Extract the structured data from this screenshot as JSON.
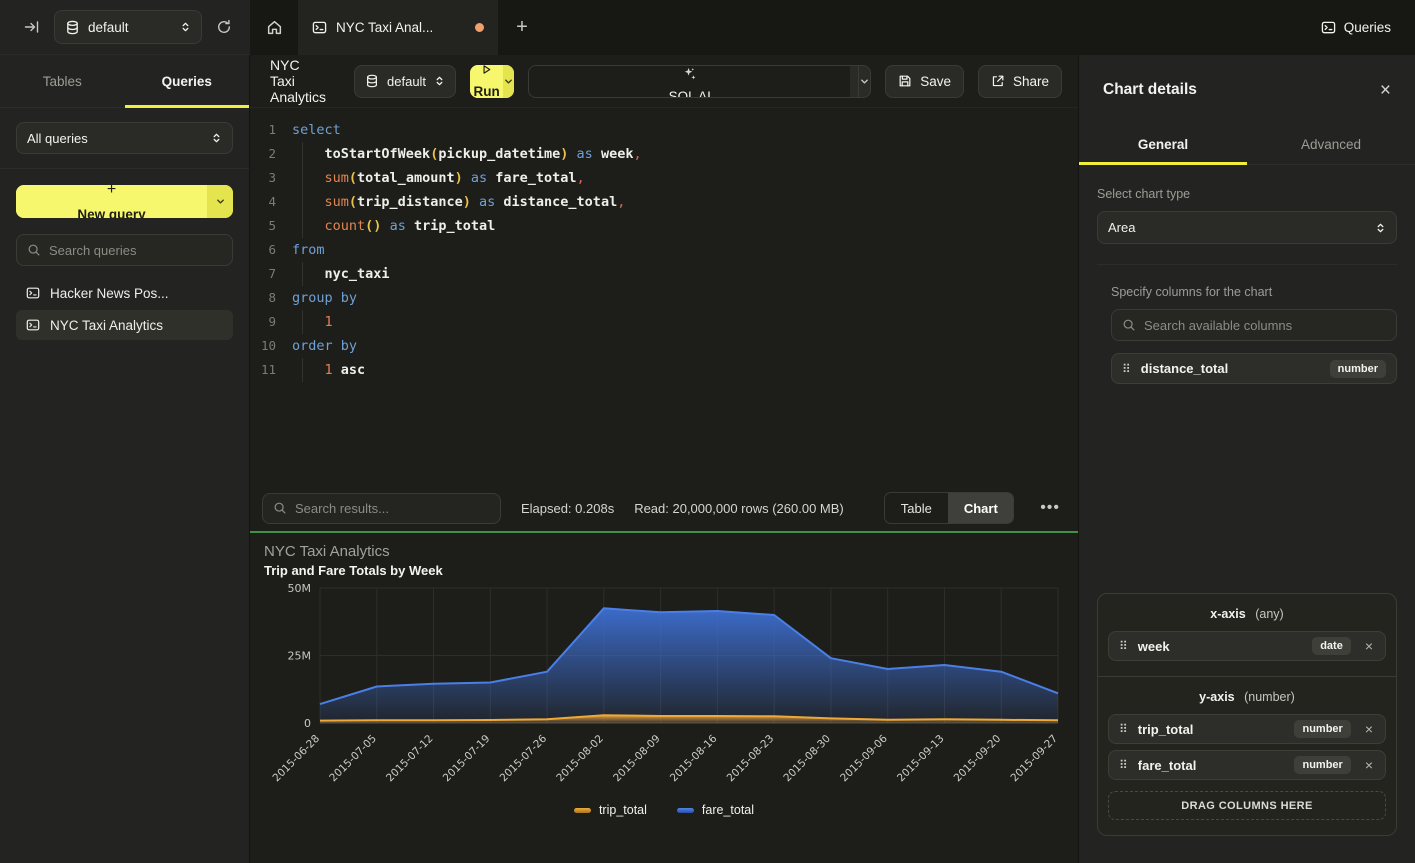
{
  "topbar": {
    "database_selector": {
      "value": "default"
    },
    "tab_label": "NYC Taxi Anal...",
    "new_tab": "+",
    "queries_button": "Queries"
  },
  "sidebar": {
    "tabs": [
      {
        "label": "Tables"
      },
      {
        "label": "Queries"
      }
    ],
    "filter_select": "All queries",
    "new_query_button": "New query",
    "search_placeholder": "Search queries",
    "queries": [
      {
        "label": "Hacker News Pos..."
      },
      {
        "label": "NYC Taxi Analytics"
      }
    ]
  },
  "toolbar": {
    "title": "NYC Taxi Analytics",
    "database_selector": "default",
    "run_label": "Run",
    "sql_ai_label": "SQL AI",
    "save_label": "Save",
    "share_label": "Share"
  },
  "editor": {
    "lines": [
      {
        "num": "1",
        "indent": false,
        "tokens": [
          [
            "select",
            "k"
          ]
        ]
      },
      {
        "num": "2",
        "indent": true,
        "tokens": [
          [
            "    ",
            "w"
          ],
          [
            "toStartOfWeek",
            "i"
          ],
          [
            "(",
            "p"
          ],
          [
            "pickup_datetime",
            "i"
          ],
          [
            ")",
            "p"
          ],
          [
            " ",
            "w"
          ],
          [
            "as",
            "k"
          ],
          [
            " ",
            "w"
          ],
          [
            "week",
            "i"
          ],
          [
            ",",
            "c"
          ]
        ]
      },
      {
        "num": "3",
        "indent": true,
        "tokens": [
          [
            "    ",
            "w"
          ],
          [
            "sum",
            "f"
          ],
          [
            "(",
            "p"
          ],
          [
            "total_amount",
            "i"
          ],
          [
            ")",
            "p"
          ],
          [
            " ",
            "w"
          ],
          [
            "as",
            "k"
          ],
          [
            " ",
            "w"
          ],
          [
            "fare_total",
            "i"
          ],
          [
            ",",
            "c"
          ]
        ]
      },
      {
        "num": "4",
        "indent": true,
        "tokens": [
          [
            "    ",
            "w"
          ],
          [
            "sum",
            "f"
          ],
          [
            "(",
            "p"
          ],
          [
            "trip_distance",
            "i"
          ],
          [
            ")",
            "p"
          ],
          [
            " ",
            "w"
          ],
          [
            "as",
            "k"
          ],
          [
            " ",
            "w"
          ],
          [
            "distance_total",
            "i"
          ],
          [
            ",",
            "c"
          ]
        ]
      },
      {
        "num": "5",
        "indent": true,
        "tokens": [
          [
            "    ",
            "w"
          ],
          [
            "count",
            "f"
          ],
          [
            "(",
            "p"
          ],
          [
            ")",
            "p"
          ],
          [
            " ",
            "w"
          ],
          [
            "as",
            "k"
          ],
          [
            " ",
            "w"
          ],
          [
            "trip_total",
            "i"
          ]
        ]
      },
      {
        "num": "6",
        "indent": false,
        "tokens": [
          [
            "from",
            "k"
          ]
        ]
      },
      {
        "num": "7",
        "indent": true,
        "tokens": [
          [
            "    ",
            "w"
          ],
          [
            "nyc_taxi",
            "i"
          ]
        ]
      },
      {
        "num": "8",
        "indent": false,
        "tokens": [
          [
            "group by",
            "k"
          ]
        ]
      },
      {
        "num": "9",
        "indent": true,
        "tokens": [
          [
            "    ",
            "w"
          ],
          [
            "1",
            "n"
          ]
        ]
      },
      {
        "num": "10",
        "indent": false,
        "tokens": [
          [
            "order by",
            "k"
          ]
        ]
      },
      {
        "num": "11",
        "indent": true,
        "tokens": [
          [
            "    ",
            "w"
          ],
          [
            "1",
            "n"
          ],
          [
            " ",
            "w"
          ],
          [
            "asc",
            "i"
          ]
        ]
      }
    ]
  },
  "results": {
    "search_placeholder": "Search results...",
    "elapsed": "Elapsed: 0.208s",
    "read": "Read: 20,000,000 rows (260.00 MB)",
    "view_table": "Table",
    "view_chart": "Chart",
    "active_view": "Chart"
  },
  "chart_data": {
    "type": "area",
    "title": "NYC Taxi Analytics",
    "subtitle": "Trip and Fare Totals by Week",
    "x": [
      "2015-06-28",
      "2015-07-05",
      "2015-07-12",
      "2015-07-19",
      "2015-07-26",
      "2015-08-02",
      "2015-08-09",
      "2015-08-16",
      "2015-08-23",
      "2015-08-30",
      "2015-09-06",
      "2015-09-13",
      "2015-09-20",
      "2015-09-27"
    ],
    "series": [
      {
        "name": "trip_total",
        "color": "#e9a13b",
        "line_color": "#f0a836",
        "values": [
          900000,
          1000000,
          1000000,
          1100000,
          1400000,
          2900000,
          2600000,
          2600000,
          2500000,
          1700000,
          1200000,
          1400000,
          1200000,
          1000000
        ]
      },
      {
        "name": "fare_total",
        "color": "#3d6fd2",
        "line_color": "#4a7fe8",
        "values": [
          7000000,
          13500000,
          14500000,
          15000000,
          19000000,
          42500000,
          41000000,
          41500000,
          40000000,
          24000000,
          20000000,
          21500000,
          19000000,
          11000000
        ]
      }
    ],
    "ylim": [
      0,
      50000000
    ],
    "yticks": [
      {
        "value": 0,
        "label": "0"
      },
      {
        "value": 25000000,
        "label": "25M"
      },
      {
        "value": 50000000,
        "label": "50M"
      }
    ],
    "grid": true,
    "legend_position": "bottom"
  },
  "chart_details": {
    "title": "Chart details",
    "tabs": [
      {
        "label": "General"
      },
      {
        "label": "Advanced"
      }
    ],
    "chart_type_label": "Select chart type",
    "chart_type_value": "Area",
    "columns_label": "Specify columns for the chart",
    "search_placeholder": "Search available columns",
    "available_columns": [
      {
        "name": "distance_total",
        "type": "number"
      }
    ],
    "x_axis": {
      "label": "x-axis",
      "hint": "(any)",
      "columns": [
        {
          "name": "week",
          "type": "date"
        }
      ]
    },
    "y_axis": {
      "label": "y-axis",
      "hint": "(number)",
      "columns": [
        {
          "name": "trip_total",
          "type": "number"
        },
        {
          "name": "fare_total",
          "type": "number"
        }
      ]
    },
    "drop_zone": "DRAG COLUMNS HERE"
  },
  "colors": {
    "accent_yellow": "#f0f03c",
    "button_yellow": "#f6f76d",
    "divider_green": "#3f9145",
    "tab_dot_orange": "#efa06f",
    "series_blue": "#3d6fd2",
    "series_orange": "#e9a13b"
  }
}
